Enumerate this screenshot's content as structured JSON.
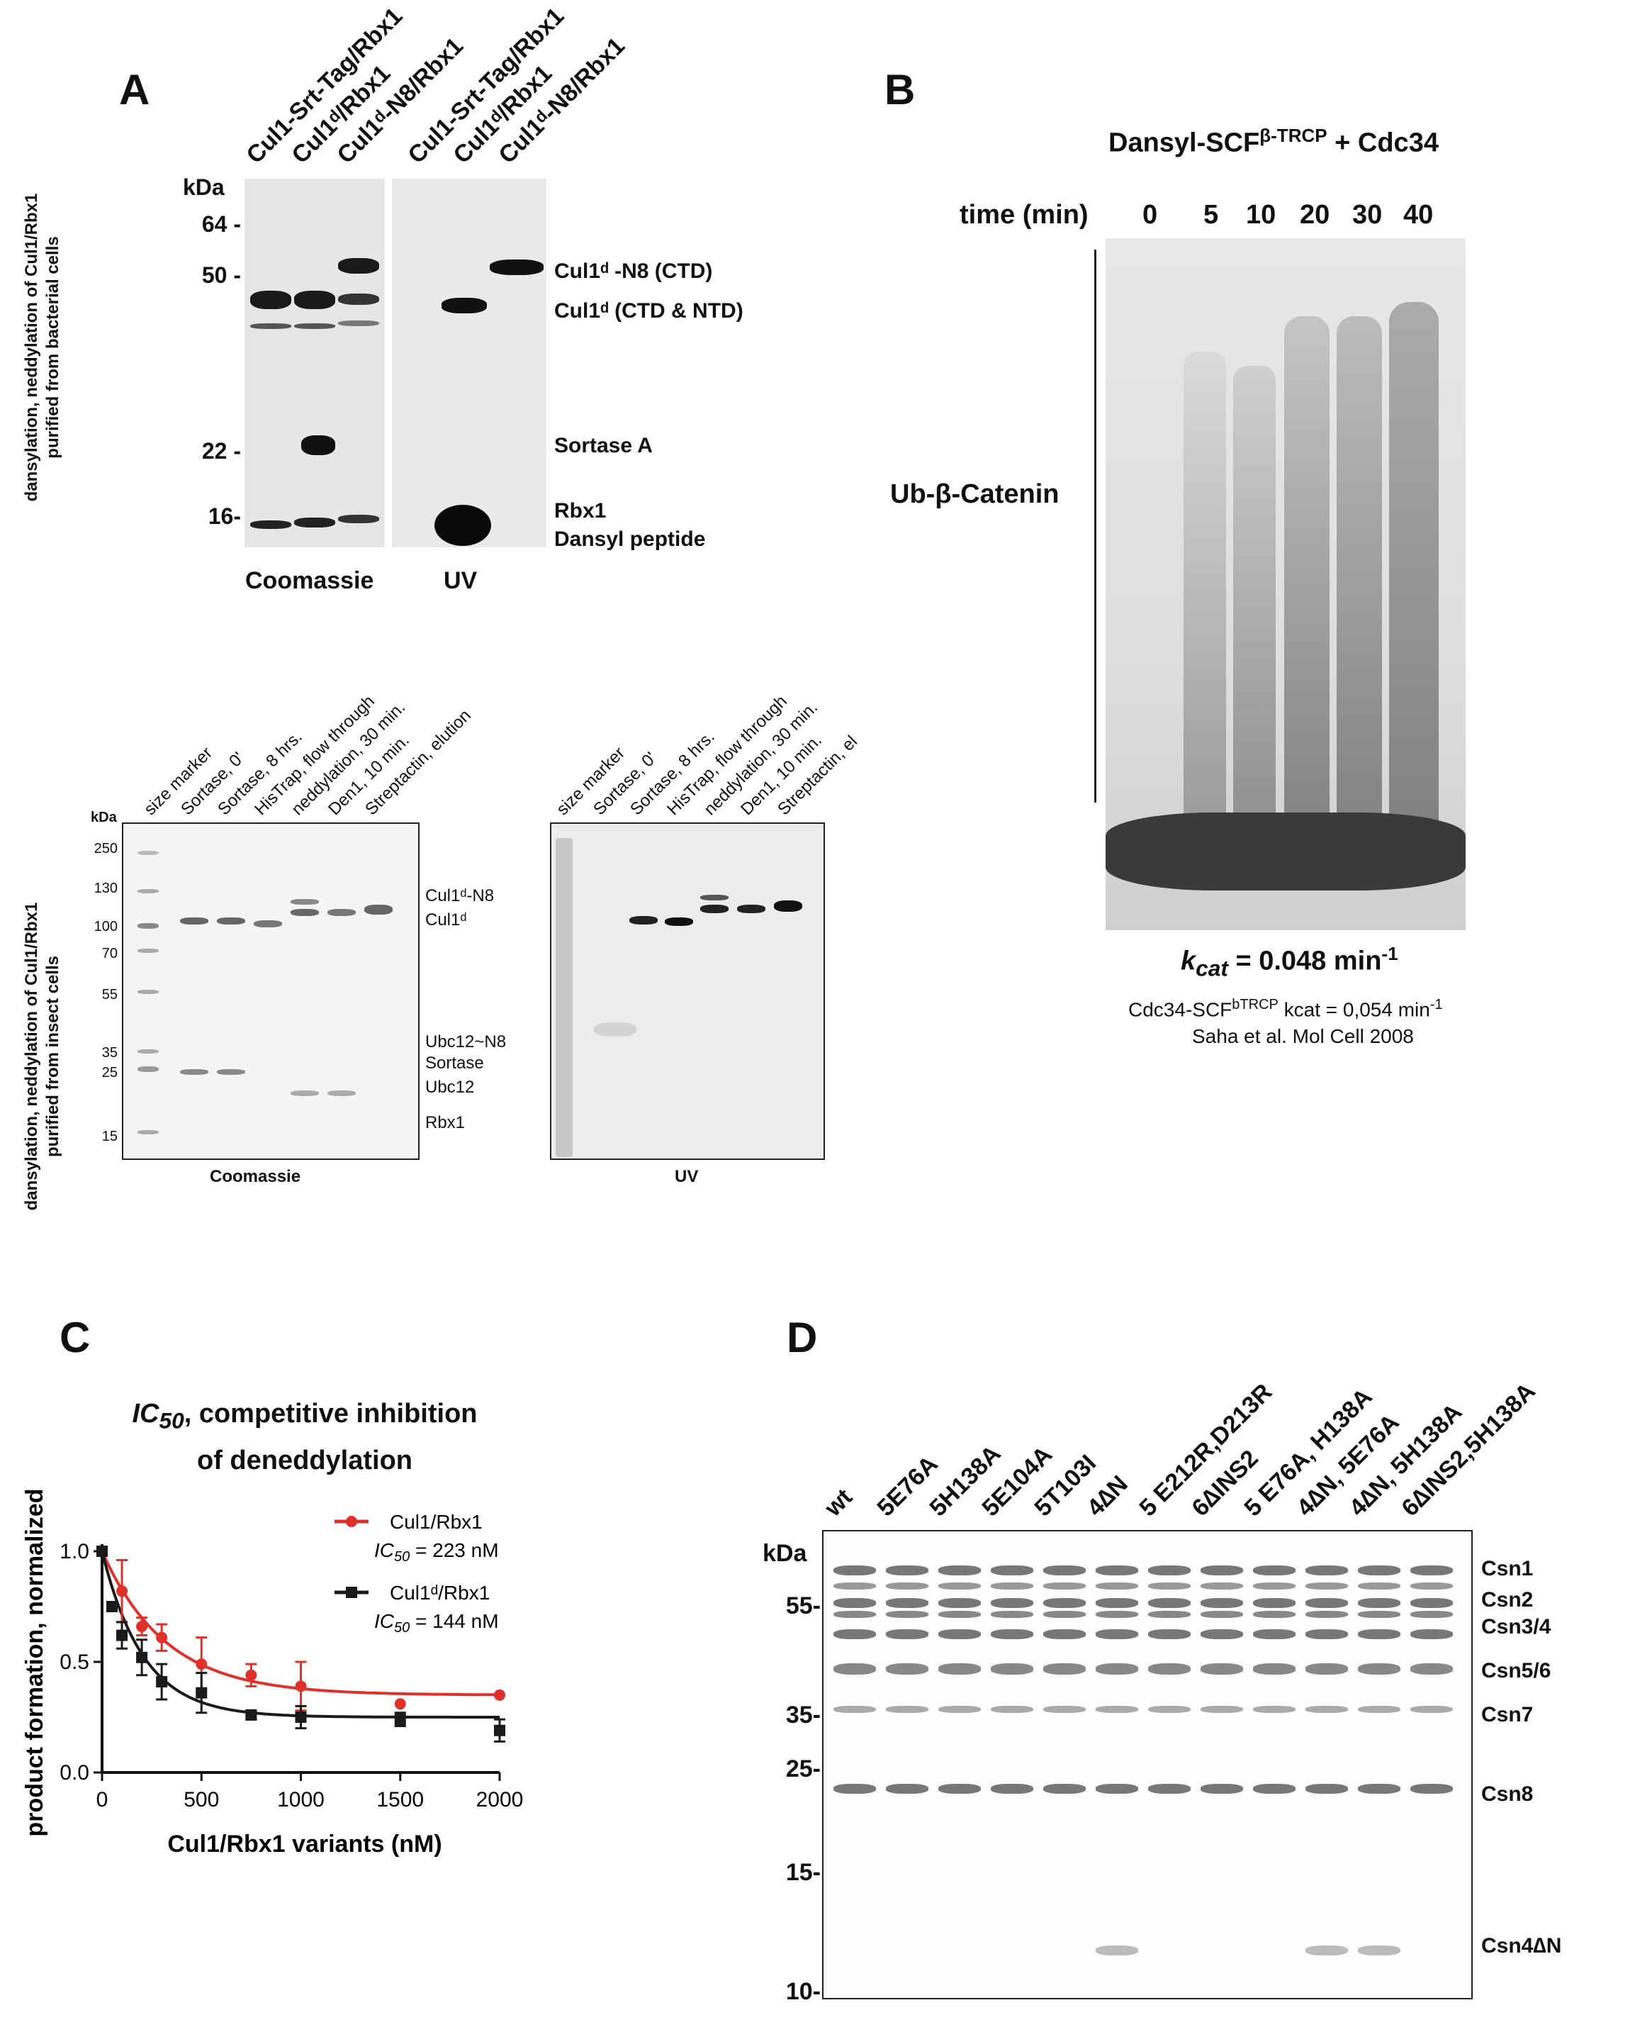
{
  "panel_a": {
    "letter": "A",
    "side_label_line1": "dansylation, neddylation of Cul1/Rbx1",
    "side_label_line2": "purified from bacterial cells",
    "lanes": [
      "Cul1-Srt-Tag/Rbx1",
      "Cul1ᵈ/Rbx1",
      "Cul1ᵈ-N8/Rbx1",
      "Cul1-Srt-Tag/Rbx1",
      "Cul1ᵈ/Rbx1",
      "Cul1ᵈ-N8/Rbx1"
    ],
    "kda": "kDa",
    "markers": [
      "64 -",
      "50 -",
      "22 -",
      "16-"
    ],
    "band_labels": [
      "Cul1ᵈ -N8 (CTD)",
      "Cul1ᵈ (CTD & NTD)",
      "Sortase A",
      "Rbx1",
      "Dansyl peptide"
    ],
    "gel_titles": [
      "Coomassie",
      "UV"
    ]
  },
  "panel_a2": {
    "side_label_line1": "dansylation, neddylation of Cul1/Rbx1",
    "side_label_line2": "purified from insect cells",
    "lanes_left": [
      "size marker",
      "Sortase, 0'",
      "Sortase, 8 hrs.",
      "HisTrap, flow through",
      "neddylation, 30 min.",
      "Den1, 10 min.",
      "Streptactin, elution"
    ],
    "lanes_right": [
      "size marker",
      "Sortase, 0'",
      "Sortase, 8 hrs.",
      "HisTrap, flow through",
      "neddylation, 30 min.",
      "Den1, 10 min.",
      "Streptactin, el"
    ],
    "kda": "kDa",
    "markers": [
      "250",
      "130",
      "100",
      "70",
      "55",
      "35",
      "25",
      "15"
    ],
    "band_labels": [
      "Cul1ᵈ-N8",
      "Cul1ᵈ",
      "Ubc12~N8",
      "Sortase",
      "Ubc12",
      "Rbx1"
    ],
    "gel_titles": [
      "Coomassie",
      "UV"
    ]
  },
  "panel_b": {
    "letter": "B",
    "title_main": "Dansyl-SCF",
    "title_sup": "β-TRCP",
    "title_tail": " + Cdc34",
    "time_label": "time (min)",
    "times": [
      "0",
      "5",
      "10",
      "20",
      "30",
      "40"
    ],
    "side_label": "Ub-β-Catenin",
    "kcat_k": "k",
    "kcat_sub": "cat",
    "kcat_value": " = 0.048 min",
    "kcat_exp": "-1",
    "ref_line1_a": "Cdc34-SCF",
    "ref_line1_sup": "bTRCP",
    "ref_line1_b": " kcat = 0,054 min",
    "ref_line1_exp": "-1",
    "ref_line2": "Saha et al. Mol Cell 2008"
  },
  "panel_c": {
    "letter": "C",
    "title_line1_ital": "IC",
    "title_line1_sub": "50",
    "title_line1_rest": ", competitive inhibition",
    "title_line2": "of deneddylation",
    "ylabel": "product formation, normalized",
    "xlabel": "Cul1/Rbx1 variants (nM)",
    "legend": [
      {
        "name": "Cul1/Rbx1",
        "ic": "IC",
        "ic_sub": "50",
        "ic_val": " = 223 nM"
      },
      {
        "name": "Cul1ᵈ/Rbx1",
        "ic": "IC",
        "ic_sub": "50",
        "ic_val": " = 144 nM"
      }
    ]
  },
  "chart_data": {
    "type": "scatter",
    "xlabel": "Cul1/Rbx1 variants (nM)",
    "ylabel": "product formation, normalized",
    "xlim": [
      0,
      2000
    ],
    "ylim": [
      0,
      1.0
    ],
    "xticks": [
      0,
      500,
      1000,
      1500,
      2000
    ],
    "yticks": [
      0.0,
      0.5,
      1.0
    ],
    "ytick_labels": [
      "0.0",
      "0.5",
      "1.0"
    ],
    "series": [
      {
        "name": "Cul1/Rbx1",
        "color": "#e0302a",
        "marker": "circle",
        "x": [
          0,
          100,
          200,
          300,
          500,
          750,
          1000,
          1500,
          2000
        ],
        "y": [
          1.0,
          0.82,
          0.66,
          0.61,
          0.49,
          0.44,
          0.39,
          0.31,
          0.35
        ],
        "err": [
          0.0,
          0.14,
          0.04,
          0.06,
          0.12,
          0.05,
          0.11,
          0.0,
          0.0
        ],
        "ic50": 223,
        "plateau": 0.35
      },
      {
        "name": "Cul1ᵈ/Rbx1",
        "color": "#1a1a1a",
        "marker": "square",
        "x": [
          0,
          50,
          100,
          200,
          300,
          500,
          750,
          1000,
          1500,
          2000
        ],
        "y": [
          1.0,
          0.75,
          0.62,
          0.52,
          0.41,
          0.36,
          0.26,
          0.25,
          0.24,
          0.19
        ],
        "err": [
          0.0,
          0.02,
          0.06,
          0.08,
          0.08,
          0.09,
          0.02,
          0.05,
          0.03,
          0.05
        ],
        "ic50": 144,
        "plateau": 0.25
      }
    ]
  },
  "panel_d": {
    "letter": "D",
    "lanes": [
      "wt",
      "5E76A",
      "5H138A",
      "5E104A",
      "5T103I",
      "4∆N",
      "5 E212R,D213R",
      "6∆INS2",
      "5 E76A, H138A",
      "4∆N, 5E76A",
      "4∆N, 5H138A",
      "6∆INS2,5H138A"
    ],
    "kda": "kDa",
    "markers": [
      "55-",
      "35-",
      "25-",
      "15-",
      "10-"
    ],
    "band_labels": [
      "Csn1",
      "Csn2",
      "Csn3/4",
      "Csn5/6",
      "Csn7",
      "Csn8",
      "Csn4∆N"
    ]
  }
}
